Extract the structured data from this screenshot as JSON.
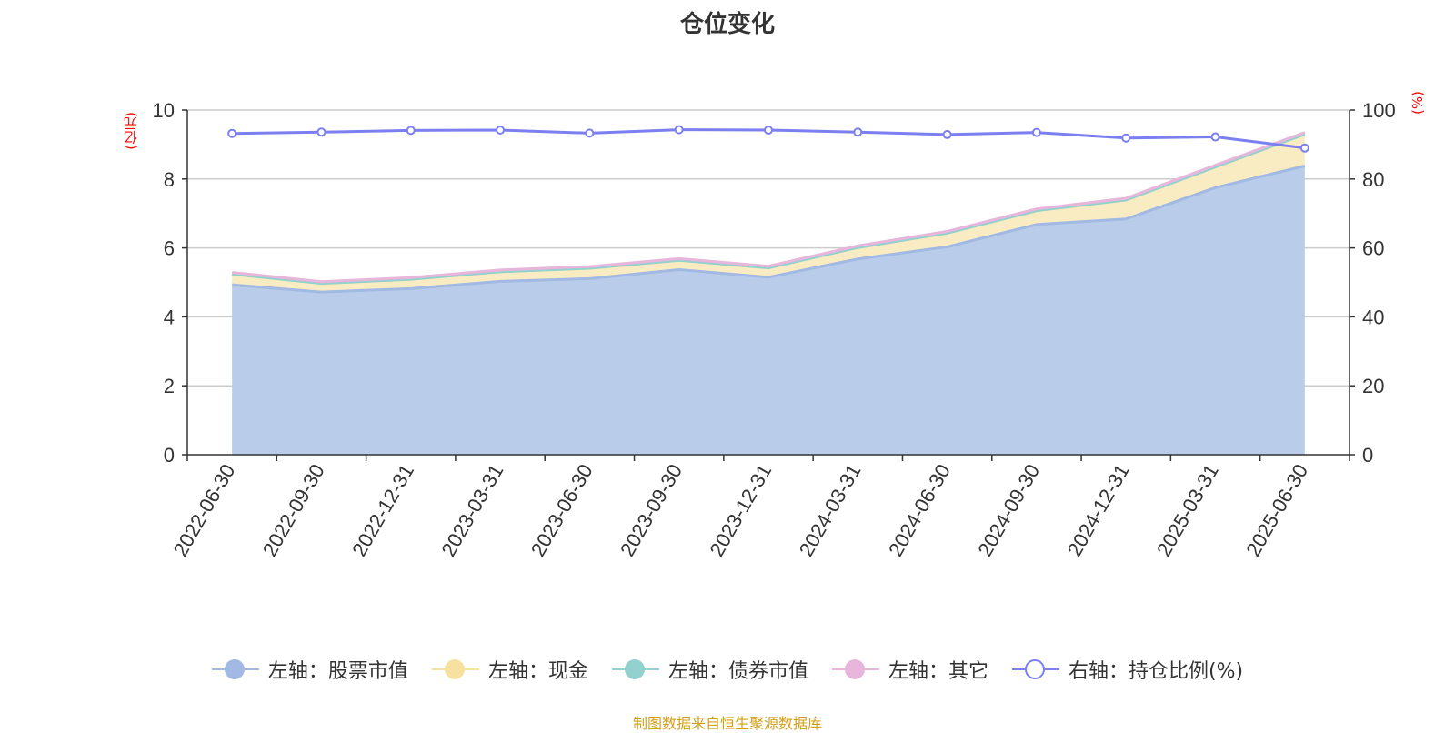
{
  "title": "仓位变化",
  "left_unit": "(亿元)",
  "right_unit": "(%)",
  "source_note": "制图数据来自恒生聚源数据库",
  "colors": {
    "stock": "#a1b9e3",
    "stock_fill": "#b9cdea",
    "cash": "#f7e1a0",
    "cash_fill": "#faecc2",
    "bond": "#92d1cf",
    "other": "#e7b6da",
    "ratio": "#7b7ff0",
    "grid": "#cccccc",
    "axis": "#333333",
    "unit": "#ff0000",
    "source": "#d4a017"
  },
  "chart_data": {
    "type": "area",
    "categories": [
      "2022-06-30",
      "2022-09-30",
      "2022-12-31",
      "2023-03-31",
      "2023-06-30",
      "2023-09-30",
      "2023-12-31",
      "2024-03-31",
      "2024-06-30",
      "2024-09-30",
      "2024-12-31",
      "2025-03-31",
      "2025-06-30"
    ],
    "left_axis": {
      "min": 0,
      "max": 10,
      "ticks": [
        "0",
        "2",
        "4",
        "6",
        "8",
        "10"
      ]
    },
    "right_axis": {
      "min": 0,
      "max": 100,
      "ticks": [
        "0",
        "20",
        "40",
        "60",
        "80",
        "100"
      ]
    },
    "grid": true,
    "legend_position": "bottom",
    "series": [
      {
        "key": "stock",
        "name": "左轴：股票市值",
        "axis": "left",
        "stacked": true,
        "values": [
          4.93,
          4.72,
          4.82,
          5.03,
          5.11,
          5.37,
          5.15,
          5.68,
          6.03,
          6.68,
          6.84,
          7.75,
          8.38
        ]
      },
      {
        "key": "cash",
        "name": "左轴：现金",
        "axis": "left",
        "stacked": true,
        "values": [
          0.31,
          0.25,
          0.27,
          0.28,
          0.3,
          0.27,
          0.27,
          0.33,
          0.4,
          0.4,
          0.55,
          0.6,
          0.92
        ]
      },
      {
        "key": "bond",
        "name": "左轴：债券市值",
        "axis": "left",
        "stacked": true,
        "values": [
          0,
          0,
          0,
          0,
          0,
          0,
          0,
          0,
          0,
          0,
          0,
          0,
          0
        ]
      },
      {
        "key": "other",
        "name": "左轴：其它",
        "axis": "left",
        "stacked": true,
        "values": [
          0.05,
          0.05,
          0.05,
          0.05,
          0.05,
          0.05,
          0.05,
          0.05,
          0.05,
          0.05,
          0.05,
          0.05,
          0.05
        ]
      },
      {
        "key": "ratio",
        "name": "右轴：持仓比例(%)",
        "axis": "right",
        "stacked": false,
        "values": [
          93.2,
          93.6,
          94.1,
          94.2,
          93.3,
          94.3,
          94.2,
          93.6,
          92.9,
          93.5,
          91.9,
          92.2,
          89.0
        ]
      }
    ]
  }
}
